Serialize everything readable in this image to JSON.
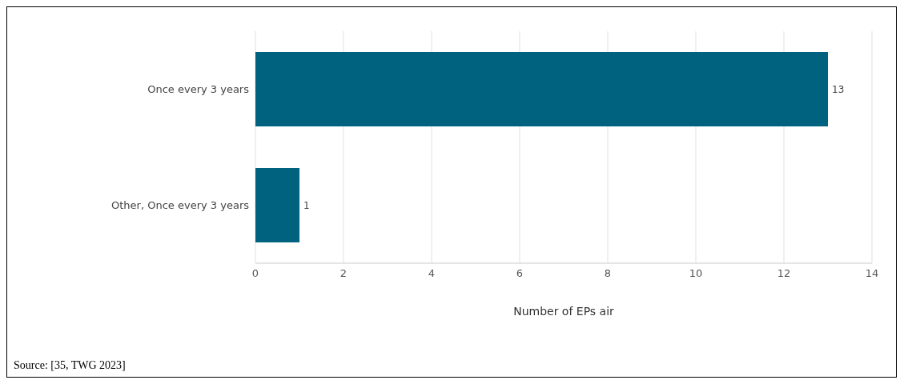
{
  "chart_data": {
    "type": "bar",
    "orientation": "horizontal",
    "categories": [
      "Once every 3 years",
      "Other, Once every 3 years"
    ],
    "values": [
      13,
      1
    ],
    "color": "#00627f",
    "xlabel": "Number of EPs air",
    "xlim": [
      0,
      14
    ],
    "xticks": [
      0,
      2,
      4,
      6,
      8,
      10,
      12,
      14
    ],
    "grid": "x",
    "data_labels": true,
    "annotations": [
      "Source: [35, TWG 2023]"
    ]
  }
}
